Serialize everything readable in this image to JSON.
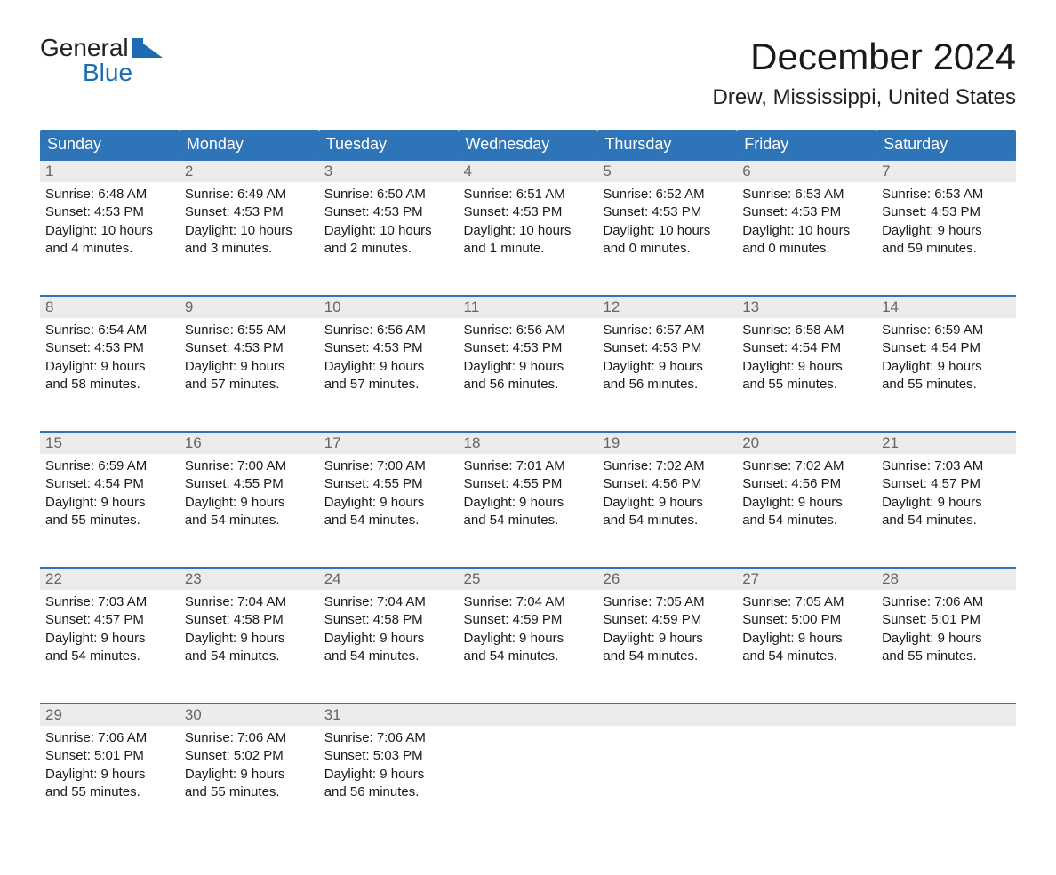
{
  "logo": {
    "text1": "General",
    "text2": "Blue"
  },
  "title": "December 2024",
  "location": "Drew, Mississippi, United States",
  "colors": {
    "header_bg": "#2d74b8",
    "header_text": "#ffffff",
    "week_border": "#2d74b8",
    "daynum_bg": "#ececec",
    "daynum_text": "#666666",
    "body_text": "#1a1a1a",
    "logo_blue": "#1c6cb3"
  },
  "fonts": {
    "title_size_pt": 32,
    "location_size_pt": 18,
    "dayname_size_pt": 14,
    "daynum_size_pt": 13,
    "cell_size_pt": 11
  },
  "day_names": [
    "Sunday",
    "Monday",
    "Tuesday",
    "Wednesday",
    "Thursday",
    "Friday",
    "Saturday"
  ],
  "weeks": [
    [
      {
        "n": "1",
        "sunrise": "Sunrise: 6:48 AM",
        "sunset": "Sunset: 4:53 PM",
        "d1": "Daylight: 10 hours",
        "d2": "and 4 minutes."
      },
      {
        "n": "2",
        "sunrise": "Sunrise: 6:49 AM",
        "sunset": "Sunset: 4:53 PM",
        "d1": "Daylight: 10 hours",
        "d2": "and 3 minutes."
      },
      {
        "n": "3",
        "sunrise": "Sunrise: 6:50 AM",
        "sunset": "Sunset: 4:53 PM",
        "d1": "Daylight: 10 hours",
        "d2": "and 2 minutes."
      },
      {
        "n": "4",
        "sunrise": "Sunrise: 6:51 AM",
        "sunset": "Sunset: 4:53 PM",
        "d1": "Daylight: 10 hours",
        "d2": "and 1 minute."
      },
      {
        "n": "5",
        "sunrise": "Sunrise: 6:52 AM",
        "sunset": "Sunset: 4:53 PM",
        "d1": "Daylight: 10 hours",
        "d2": "and 0 minutes."
      },
      {
        "n": "6",
        "sunrise": "Sunrise: 6:53 AM",
        "sunset": "Sunset: 4:53 PM",
        "d1": "Daylight: 10 hours",
        "d2": "and 0 minutes."
      },
      {
        "n": "7",
        "sunrise": "Sunrise: 6:53 AM",
        "sunset": "Sunset: 4:53 PM",
        "d1": "Daylight: 9 hours",
        "d2": "and 59 minutes."
      }
    ],
    [
      {
        "n": "8",
        "sunrise": "Sunrise: 6:54 AM",
        "sunset": "Sunset: 4:53 PM",
        "d1": "Daylight: 9 hours",
        "d2": "and 58 minutes."
      },
      {
        "n": "9",
        "sunrise": "Sunrise: 6:55 AM",
        "sunset": "Sunset: 4:53 PM",
        "d1": "Daylight: 9 hours",
        "d2": "and 57 minutes."
      },
      {
        "n": "10",
        "sunrise": "Sunrise: 6:56 AM",
        "sunset": "Sunset: 4:53 PM",
        "d1": "Daylight: 9 hours",
        "d2": "and 57 minutes."
      },
      {
        "n": "11",
        "sunrise": "Sunrise: 6:56 AM",
        "sunset": "Sunset: 4:53 PM",
        "d1": "Daylight: 9 hours",
        "d2": "and 56 minutes."
      },
      {
        "n": "12",
        "sunrise": "Sunrise: 6:57 AM",
        "sunset": "Sunset: 4:53 PM",
        "d1": "Daylight: 9 hours",
        "d2": "and 56 minutes."
      },
      {
        "n": "13",
        "sunrise": "Sunrise: 6:58 AM",
        "sunset": "Sunset: 4:54 PM",
        "d1": "Daylight: 9 hours",
        "d2": "and 55 minutes."
      },
      {
        "n": "14",
        "sunrise": "Sunrise: 6:59 AM",
        "sunset": "Sunset: 4:54 PM",
        "d1": "Daylight: 9 hours",
        "d2": "and 55 minutes."
      }
    ],
    [
      {
        "n": "15",
        "sunrise": "Sunrise: 6:59 AM",
        "sunset": "Sunset: 4:54 PM",
        "d1": "Daylight: 9 hours",
        "d2": "and 55 minutes."
      },
      {
        "n": "16",
        "sunrise": "Sunrise: 7:00 AM",
        "sunset": "Sunset: 4:55 PM",
        "d1": "Daylight: 9 hours",
        "d2": "and 54 minutes."
      },
      {
        "n": "17",
        "sunrise": "Sunrise: 7:00 AM",
        "sunset": "Sunset: 4:55 PM",
        "d1": "Daylight: 9 hours",
        "d2": "and 54 minutes."
      },
      {
        "n": "18",
        "sunrise": "Sunrise: 7:01 AM",
        "sunset": "Sunset: 4:55 PM",
        "d1": "Daylight: 9 hours",
        "d2": "and 54 minutes."
      },
      {
        "n": "19",
        "sunrise": "Sunrise: 7:02 AM",
        "sunset": "Sunset: 4:56 PM",
        "d1": "Daylight: 9 hours",
        "d2": "and 54 minutes."
      },
      {
        "n": "20",
        "sunrise": "Sunrise: 7:02 AM",
        "sunset": "Sunset: 4:56 PM",
        "d1": "Daylight: 9 hours",
        "d2": "and 54 minutes."
      },
      {
        "n": "21",
        "sunrise": "Sunrise: 7:03 AM",
        "sunset": "Sunset: 4:57 PM",
        "d1": "Daylight: 9 hours",
        "d2": "and 54 minutes."
      }
    ],
    [
      {
        "n": "22",
        "sunrise": "Sunrise: 7:03 AM",
        "sunset": "Sunset: 4:57 PM",
        "d1": "Daylight: 9 hours",
        "d2": "and 54 minutes."
      },
      {
        "n": "23",
        "sunrise": "Sunrise: 7:04 AM",
        "sunset": "Sunset: 4:58 PM",
        "d1": "Daylight: 9 hours",
        "d2": "and 54 minutes."
      },
      {
        "n": "24",
        "sunrise": "Sunrise: 7:04 AM",
        "sunset": "Sunset: 4:58 PM",
        "d1": "Daylight: 9 hours",
        "d2": "and 54 minutes."
      },
      {
        "n": "25",
        "sunrise": "Sunrise: 7:04 AM",
        "sunset": "Sunset: 4:59 PM",
        "d1": "Daylight: 9 hours",
        "d2": "and 54 minutes."
      },
      {
        "n": "26",
        "sunrise": "Sunrise: 7:05 AM",
        "sunset": "Sunset: 4:59 PM",
        "d1": "Daylight: 9 hours",
        "d2": "and 54 minutes."
      },
      {
        "n": "27",
        "sunrise": "Sunrise: 7:05 AM",
        "sunset": "Sunset: 5:00 PM",
        "d1": "Daylight: 9 hours",
        "d2": "and 54 minutes."
      },
      {
        "n": "28",
        "sunrise": "Sunrise: 7:06 AM",
        "sunset": "Sunset: 5:01 PM",
        "d1": "Daylight: 9 hours",
        "d2": "and 55 minutes."
      }
    ],
    [
      {
        "n": "29",
        "sunrise": "Sunrise: 7:06 AM",
        "sunset": "Sunset: 5:01 PM",
        "d1": "Daylight: 9 hours",
        "d2": "and 55 minutes."
      },
      {
        "n": "30",
        "sunrise": "Sunrise: 7:06 AM",
        "sunset": "Sunset: 5:02 PM",
        "d1": "Daylight: 9 hours",
        "d2": "and 55 minutes."
      },
      {
        "n": "31",
        "sunrise": "Sunrise: 7:06 AM",
        "sunset": "Sunset: 5:03 PM",
        "d1": "Daylight: 9 hours",
        "d2": "and 56 minutes."
      },
      null,
      null,
      null,
      null
    ]
  ]
}
